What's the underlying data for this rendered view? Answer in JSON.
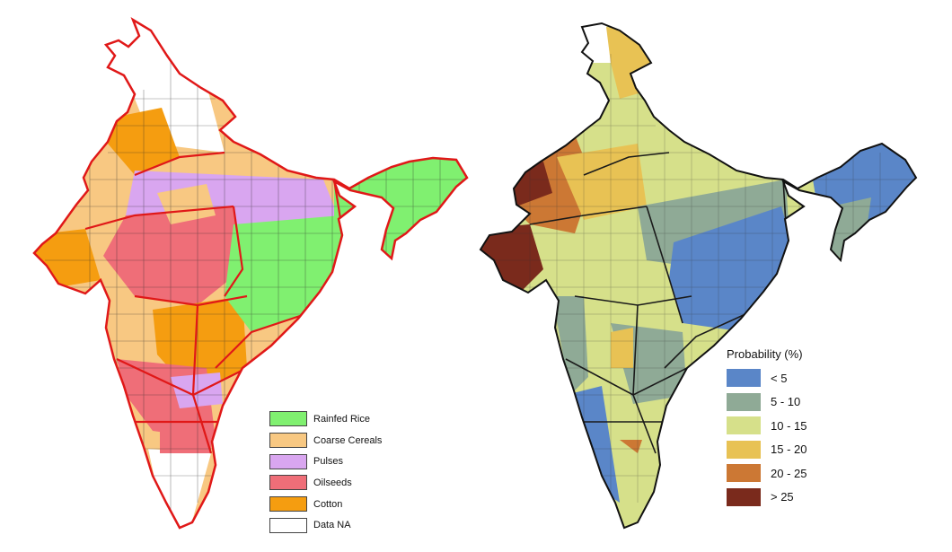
{
  "maps": {
    "crop_map": {
      "legend": [
        {
          "label": "Rainfed Rice",
          "color": "#80f070"
        },
        {
          "label": "Coarse Cereals",
          "color": "#f8c882"
        },
        {
          "label": "Pulses",
          "color": "#d9a6f0"
        },
        {
          "label": "Oilseeds",
          "color": "#ef6e78"
        },
        {
          "label": "Cotton",
          "color": "#f59d10"
        },
        {
          "label": "Data NA",
          "color": "#ffffff"
        }
      ],
      "boundary_color": "#e01818"
    },
    "probability_map": {
      "legend_title": "Probability (%)",
      "legend": [
        {
          "label": "< 5",
          "color": "#5a86c8"
        },
        {
          "label": "5 - 10",
          "color": "#8faa96"
        },
        {
          "label": "10 - 15",
          "color": "#d6e08a"
        },
        {
          "label": "15 - 20",
          "color": "#e8c254"
        },
        {
          "label": "20 - 25",
          "color": "#cc7834"
        },
        {
          "label": "> 25",
          "color": "#7a2a1c"
        }
      ],
      "boundary_color": "#1a1a1a"
    }
  }
}
